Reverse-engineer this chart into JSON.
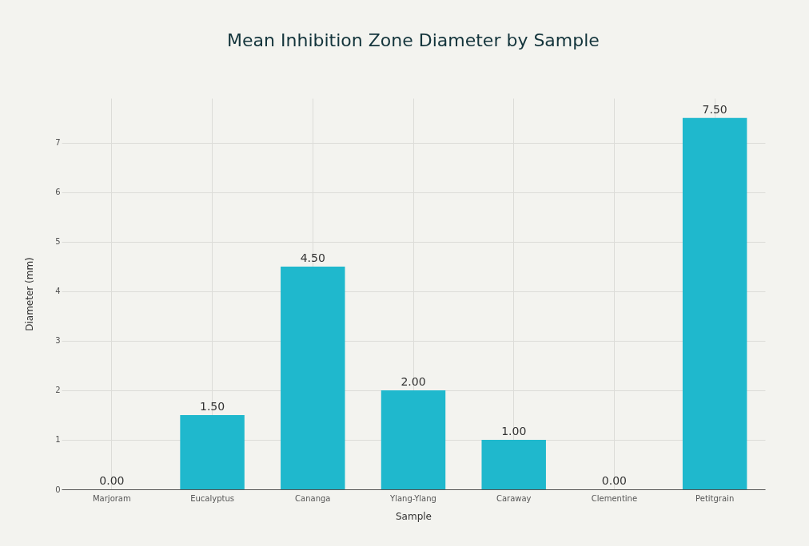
{
  "chart_data": {
    "type": "bar",
    "title": "Mean Inhibition Zone Diameter by Sample",
    "xlabel": "Sample",
    "ylabel": "Diameter (mm)",
    "categories": [
      "Marjoram",
      "Eucalyptus",
      "Cananga",
      "Ylang-Ylang",
      "Caraway",
      "Clementine",
      "Petitgrain"
    ],
    "values": [
      0,
      1.5,
      4.5,
      2,
      1,
      0,
      7.5
    ],
    "value_labels": [
      "0.00",
      "1.50",
      "4.50",
      "2.00",
      "1.00",
      "0.00",
      "7.50"
    ],
    "color": "#1fb8cd",
    "ylim": [
      0,
      7.9
    ],
    "yticks": [
      0,
      1,
      2,
      3,
      4,
      5,
      6,
      7
    ],
    "grid": true
  }
}
